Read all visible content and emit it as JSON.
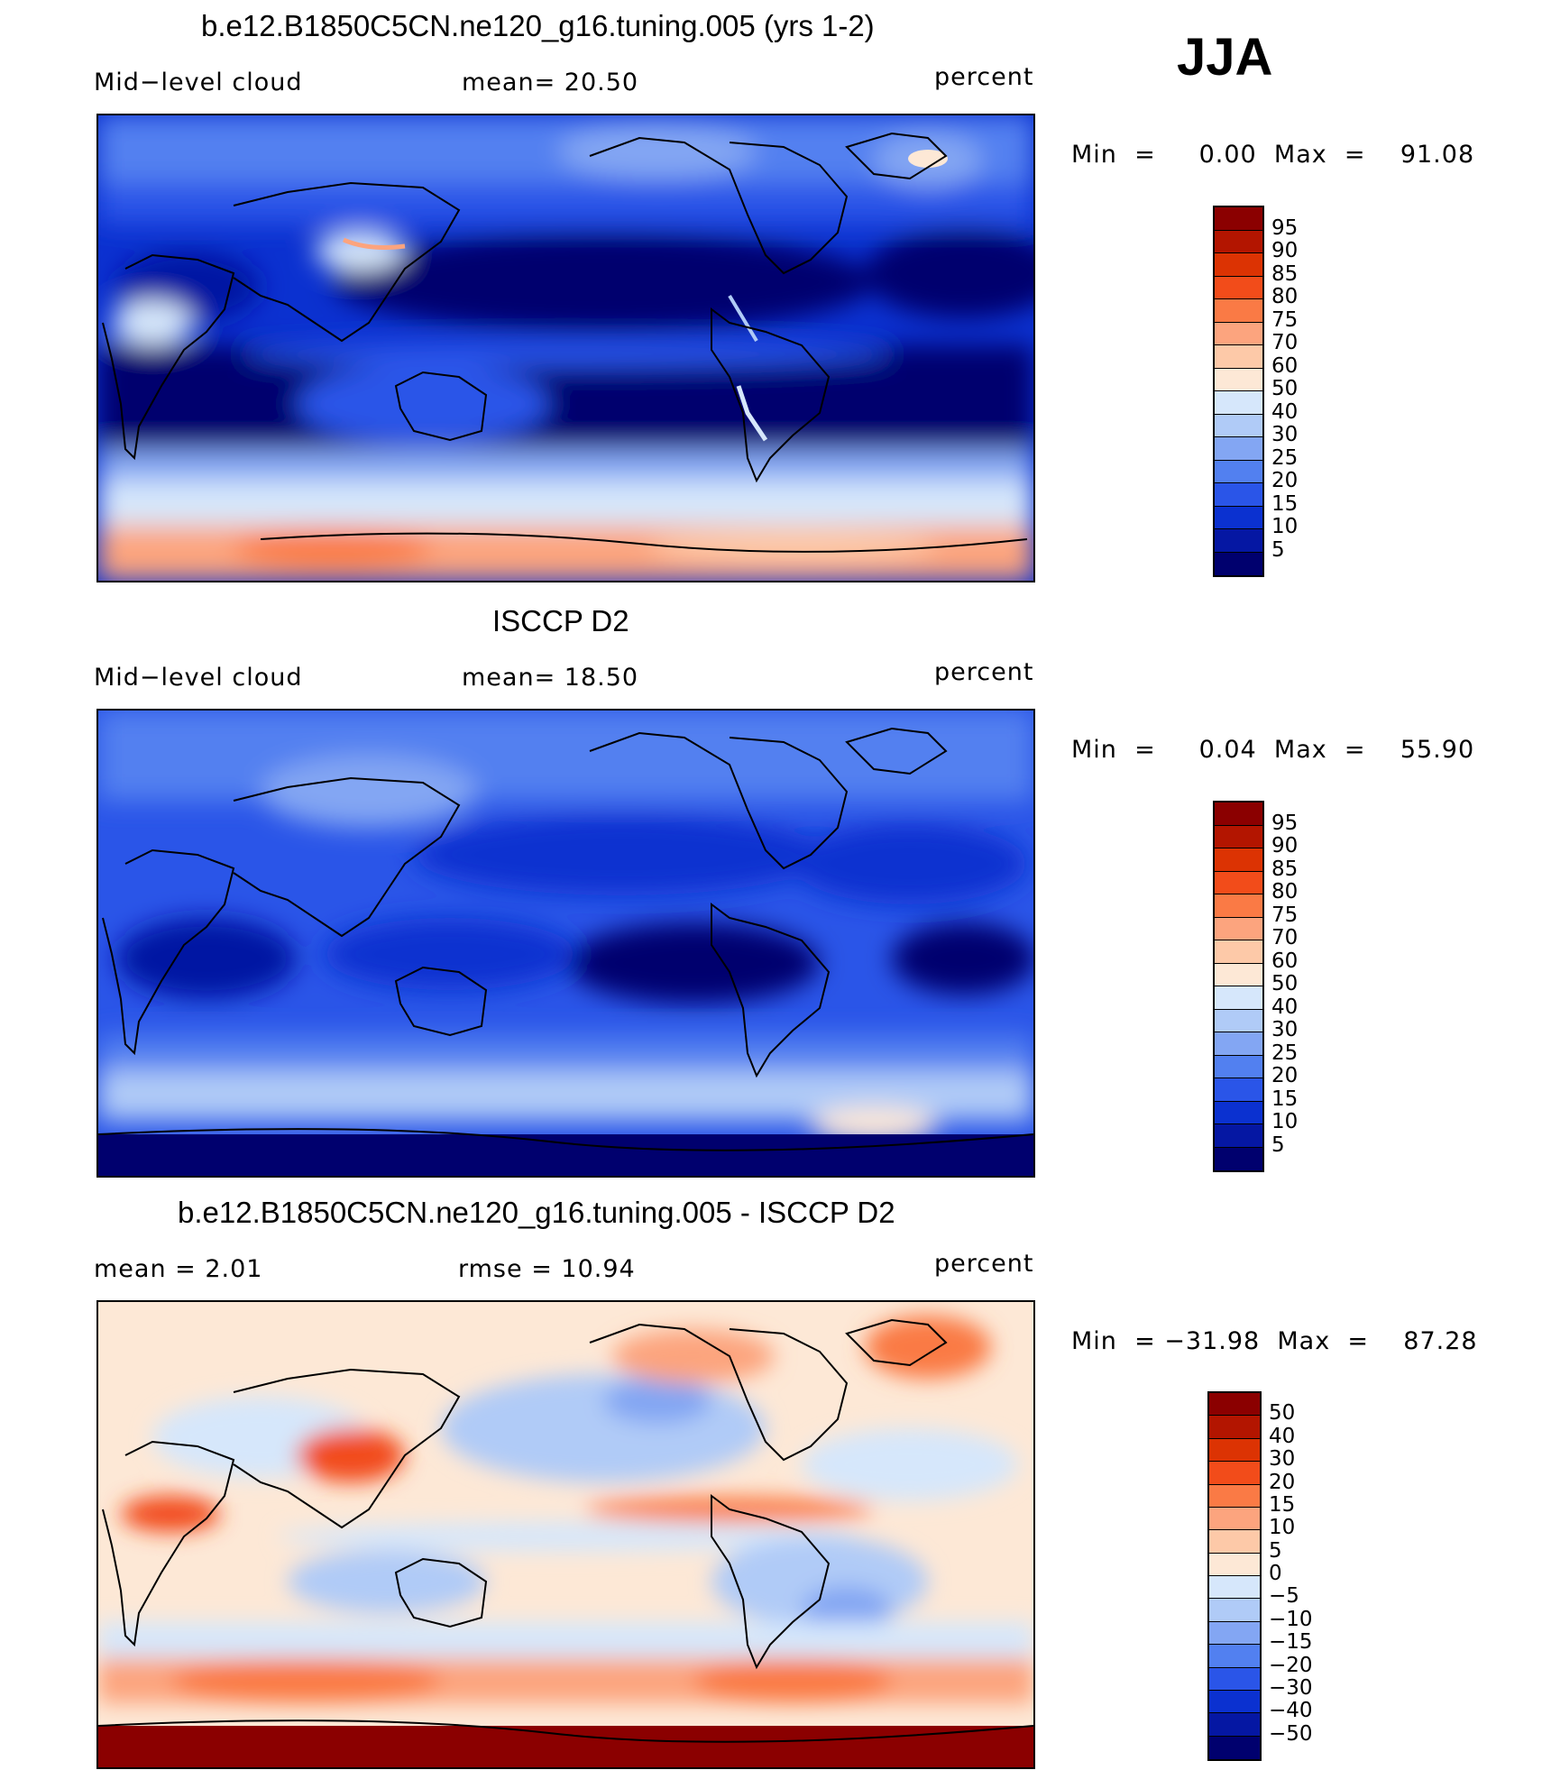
{
  "season": "JJA",
  "panels": [
    {
      "title": "b.e12.B1850C5CN.ne120_g16.tuning.005 (yrs 1-2)",
      "left_label": "Mid−level cloud",
      "mid_label": "mean=   20.50",
      "right_label": "percent",
      "minmax": "Min  =     0.00  Max  =    91.08",
      "colorbar_labels": [
        "95",
        "90",
        "85",
        "80",
        "75",
        "70",
        "60",
        "50",
        "40",
        "30",
        "25",
        "20",
        "15",
        "10",
        "5"
      ],
      "palette": [
        "#8b0000",
        "#b31500",
        "#dc3303",
        "#f24c1a",
        "#fa7a45",
        "#fca47e",
        "#fdc9a8",
        "#fde8d6",
        "#d6e7fb",
        "#b0cbf7",
        "#83a6f3",
        "#5280f0",
        "#2a55e8",
        "#0b31d0",
        "#0517a3",
        "#00006e"
      ]
    },
    {
      "title": "ISCCP D2",
      "left_label": "Mid−level cloud",
      "mid_label": "mean=   18.50",
      "right_label": "percent",
      "minmax": "Min  =     0.04  Max  =    55.90",
      "colorbar_labels": [
        "95",
        "90",
        "85",
        "80",
        "75",
        "70",
        "60",
        "50",
        "40",
        "30",
        "25",
        "20",
        "15",
        "10",
        "5"
      ],
      "palette": [
        "#8b0000",
        "#b31500",
        "#dc3303",
        "#f24c1a",
        "#fa7a45",
        "#fca47e",
        "#fdc9a8",
        "#fde8d6",
        "#d6e7fb",
        "#b0cbf7",
        "#83a6f3",
        "#5280f0",
        "#2a55e8",
        "#0b31d0",
        "#0517a3",
        "#00006e"
      ]
    },
    {
      "title": "b.e12.B1850C5CN.ne120_g16.tuning.005 - ISCCP D2",
      "left_label": "mean  =     2.01",
      "mid_label": "rmse  =    10.94",
      "right_label": "percent",
      "minmax": "Min  = −31.98  Max  =    87.28",
      "colorbar_labels": [
        "50",
        "40",
        "30",
        "20",
        "15",
        "10",
        "5",
        "0",
        "−5",
        "−10",
        "−15",
        "−20",
        "−30",
        "−40",
        "−50"
      ],
      "palette": [
        "#8b0000",
        "#b31500",
        "#dc3303",
        "#f24c1a",
        "#fa7a45",
        "#fca47e",
        "#fdc9a8",
        "#fde8d6",
        "#d6e7fb",
        "#b0cbf7",
        "#83a6f3",
        "#5280f0",
        "#2a55e8",
        "#0b31d0",
        "#0517a3",
        "#00006e"
      ]
    }
  ]
}
